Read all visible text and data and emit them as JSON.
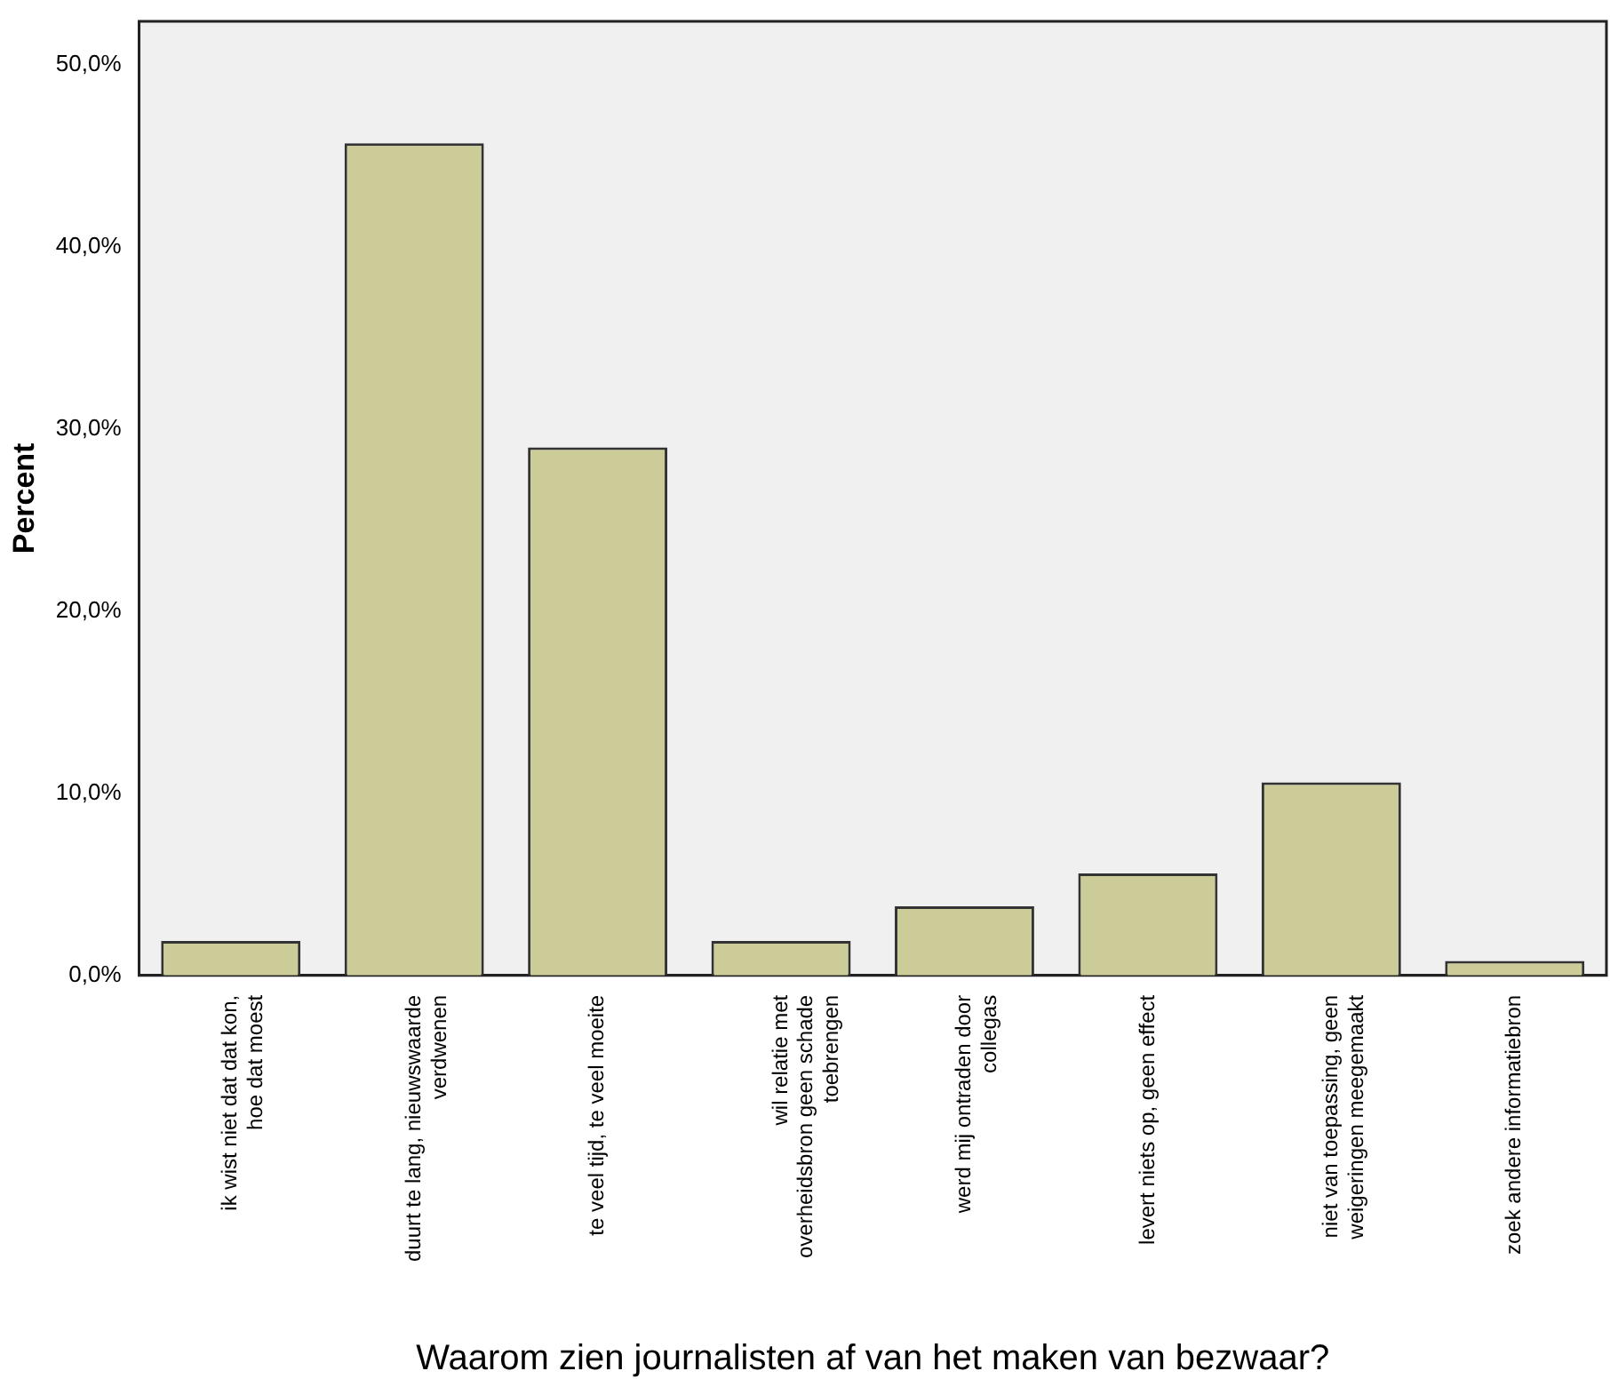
{
  "chart_data": {
    "type": "bar",
    "xlabel": "Waarom zien journalisten af van het maken van bezwaar?",
    "ylabel": "Percent",
    "categories": [
      "ik wist niet dat dat kon, hoe dat moest",
      "duurt te lang, nieuwswaarde verdwenen",
      "te veel tijd, te veel moeite",
      "wil relatie met overheidsbron geen schade toebrengen",
      "werd mij ontraden door collegas",
      "levert niets op, geen effect",
      "niet van toepassing, geen weigeringen meegemaakt",
      "zoek andere informatiebron"
    ],
    "values": [
      1.9,
      45.7,
      29.0,
      1.9,
      3.8,
      5.6,
      10.6,
      0.8
    ],
    "color": "#cccc99",
    "ylim": [
      0,
      52.4
    ],
    "yticks": [
      {
        "value": 0,
        "label": "0,0%"
      },
      {
        "value": 10,
        "label": "10,0%"
      },
      {
        "value": 20,
        "label": "20,0%"
      },
      {
        "value": 30,
        "label": "30,0%"
      },
      {
        "value": 40,
        "label": "40,0%"
      },
      {
        "value": 50,
        "label": "50,0%"
      }
    ],
    "grid": false,
    "legend": false
  }
}
